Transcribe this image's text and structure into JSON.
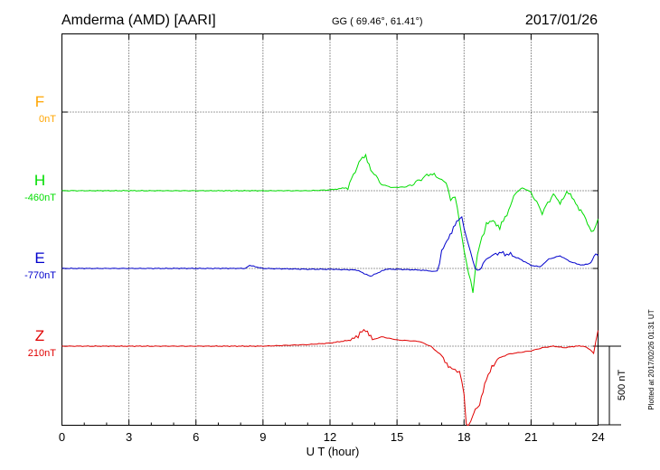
{
  "header": {
    "station": "Amderma (AMD)  [AARI]",
    "coords": "GG ( 69.46°,  61.41°)",
    "date": "2017/01/26"
  },
  "colors": {
    "F": "#ffa500",
    "H": "#00dd00",
    "E": "#0000cc",
    "Z": "#e00000",
    "axis": "#000000",
    "grid": "#000000"
  },
  "plotted_note": "Plotted at 2017/02/26 01:31  UT",
  "chart_data": {
    "type": "line",
    "title": "",
    "xlabel": "U T (hour)",
    "xlim": [
      0,
      24
    ],
    "xticks": [
      "0",
      "3",
      "6",
      "9",
      "12",
      "15",
      "18",
      "21",
      "24"
    ],
    "grid": true,
    "scale_bar": {
      "label": "500 nT",
      "value_nT": 500
    },
    "components": [
      {
        "name": "F",
        "baseline": "0nT"
      },
      {
        "name": "H",
        "baseline": "-460nT"
      },
      {
        "name": "E",
        "baseline": "-770nT"
      },
      {
        "name": "Z",
        "baseline": "210nT"
      }
    ],
    "series": [
      {
        "name": "H",
        "offset_nT": 0,
        "x": [
          0,
          3,
          6,
          8,
          11,
          12,
          12.8,
          13.3,
          13.6,
          13.9,
          14.3,
          14.8,
          15.5,
          16.5,
          17,
          17.2,
          17.4,
          17.6,
          17.8,
          18,
          18.2,
          18.4,
          18.6,
          18.8,
          19,
          19.3,
          19.6,
          20,
          20.3,
          20.6,
          21,
          21.5,
          22,
          22.3,
          22.6,
          23,
          23.3,
          23.6,
          23.8,
          24
        ],
        "y": [
          0,
          0,
          0,
          0,
          0,
          5,
          20,
          180,
          220,
          120,
          40,
          20,
          25,
          110,
          70,
          50,
          -60,
          -30,
          -200,
          -380,
          -520,
          -640,
          -400,
          -300,
          -220,
          -180,
          -240,
          -120,
          -20,
          20,
          -10,
          -140,
          -20,
          -80,
          0,
          -80,
          -140,
          -240,
          -260,
          -180
        ]
      },
      {
        "name": "E",
        "offset_nT": 0,
        "x": [
          0,
          3,
          6,
          8.2,
          8.4,
          9,
          11,
          12,
          13.2,
          13.8,
          14.5,
          15,
          16,
          16.8,
          17,
          17.3,
          17.6,
          17.9,
          18.1,
          18.3,
          18.5,
          18.7,
          19,
          19.5,
          20,
          20.5,
          21,
          21.4,
          21.8,
          22.3,
          22.8,
          23.3,
          23.6,
          23.9,
          24
        ],
        "y": [
          0,
          0,
          0,
          0,
          20,
          0,
          -5,
          -5,
          -10,
          -50,
          -5,
          -5,
          -10,
          -20,
          100,
          200,
          280,
          320,
          200,
          100,
          0,
          -20,
          60,
          100,
          90,
          60,
          20,
          10,
          60,
          80,
          40,
          20,
          30,
          100,
          80
        ]
      },
      {
        "name": "Z",
        "offset_nT": 0,
        "x": [
          0,
          3,
          6,
          9,
          11,
          12,
          13,
          13.6,
          13.9,
          14.3,
          15,
          16,
          16.5,
          17,
          17.3,
          17.6,
          17.8,
          18,
          18.1,
          18.2,
          18.4,
          18.5,
          18.7,
          19,
          19.5,
          20,
          20.5,
          21,
          21.5,
          22,
          22.5,
          23,
          23.4,
          23.8,
          24
        ],
        "y": [
          0,
          0,
          0,
          0,
          10,
          20,
          40,
          110,
          40,
          60,
          40,
          30,
          0,
          -60,
          -120,
          -160,
          -160,
          -300,
          -500,
          -520,
          -440,
          -400,
          -380,
          -200,
          -80,
          -50,
          -40,
          -30,
          -10,
          0,
          -10,
          0,
          0,
          -40,
          100
        ]
      }
    ]
  }
}
